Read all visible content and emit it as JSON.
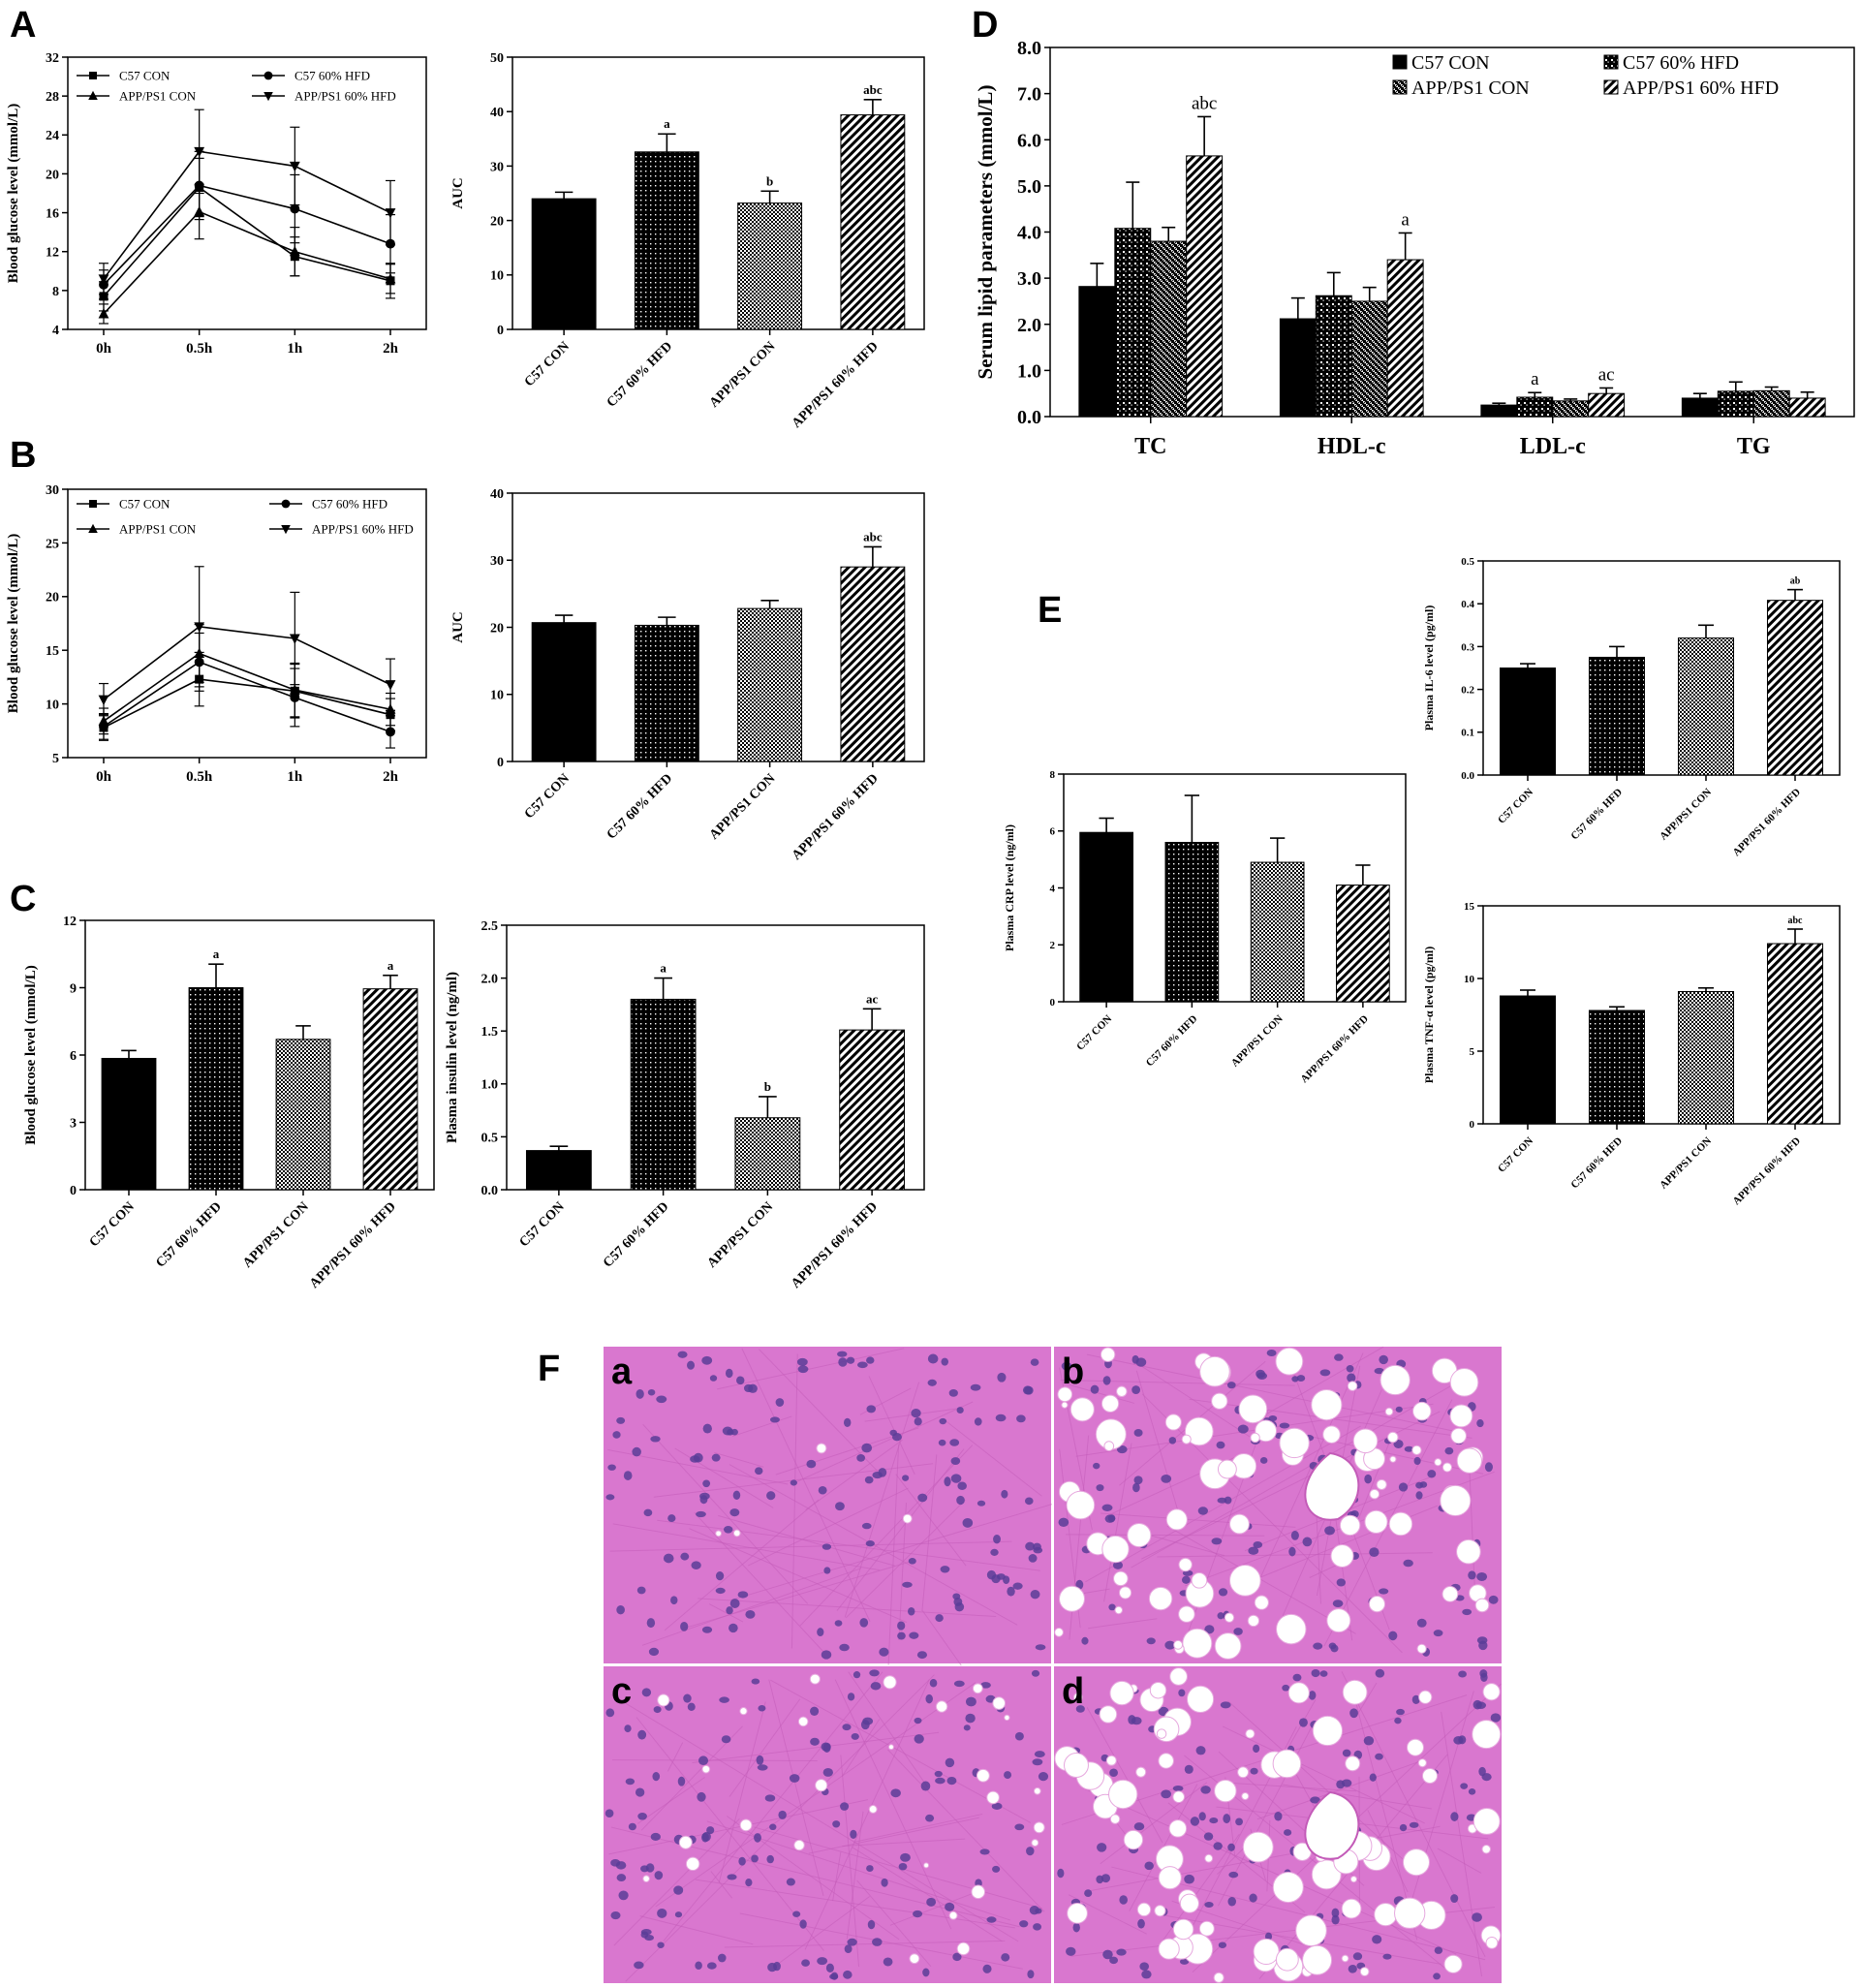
{
  "panels": [
    "A",
    "B",
    "C",
    "D",
    "E",
    "F"
  ],
  "colors": {
    "ink": "#000000",
    "background": "#ffffff",
    "tissue": "#d977cf",
    "nucleus": "#5a3d98"
  },
  "patterns": {
    "C57 CON": "solid-black",
    "C57 60% HFD": "dotted",
    "APP/PS1 CON": "checker",
    "APP/PS1 60% HFD": "diagonal-lines"
  },
  "chart_data": [
    {
      "id": "A1",
      "panel": "A",
      "type": "line",
      "xlabel": "",
      "ylabel": "Blood glucose level (mmol/L)",
      "ylim": [
        4,
        32
      ],
      "yticks": [
        4,
        8,
        12,
        16,
        20,
        24,
        28,
        32
      ],
      "categories": [
        "0h",
        "0.5h",
        "1h",
        "2h"
      ],
      "legend_position": "top-left",
      "series": [
        {
          "name": "C57 CON",
          "marker": "square",
          "values": [
            7.4,
            18.6,
            11.5,
            9.0
          ],
          "errors": [
            1.5,
            3.0,
            2.0,
            1.8
          ]
        },
        {
          "name": "C57 60% HFD",
          "marker": "circle",
          "values": [
            8.6,
            18.8,
            16.4,
            12.8
          ],
          "errors": [
            1.5,
            3.5,
            3.5,
            3.0
          ]
        },
        {
          "name": "APP/PS1 CON",
          "marker": "triangle-up",
          "values": [
            5.6,
            16.1,
            12.0,
            9.2
          ],
          "errors": [
            1.0,
            2.8,
            2.5,
            1.5
          ]
        },
        {
          "name": "APP/PS1 60% HFD",
          "marker": "triangle-down",
          "values": [
            9.2,
            22.3,
            20.8,
            16.0
          ],
          "errors": [
            1.6,
            4.3,
            4.0,
            3.3
          ]
        }
      ]
    },
    {
      "id": "A2",
      "panel": "A",
      "type": "bar",
      "xlabel": "",
      "ylabel": "AUC",
      "ylim": [
        0,
        50
      ],
      "yticks": [
        0,
        10,
        20,
        30,
        40,
        50
      ],
      "categories": [
        "C57 CON",
        "C57 60% HFD",
        "APP/PS1 CON",
        "APP/PS1 60% HFD"
      ],
      "values": [
        24.0,
        32.6,
        23.2,
        39.4
      ],
      "errors": [
        1.2,
        3.3,
        2.2,
        2.8
      ],
      "annotations": [
        "",
        "a",
        "b",
        "abc"
      ]
    },
    {
      "id": "B1",
      "panel": "B",
      "type": "line",
      "xlabel": "",
      "ylabel": "Blood glucose level (mmol/L)",
      "ylim": [
        5,
        30
      ],
      "yticks": [
        5,
        10,
        15,
        20,
        25,
        30
      ],
      "categories": [
        "0h",
        "0.5h",
        "1h",
        "2h"
      ],
      "legend_position": "top-left",
      "series": [
        {
          "name": "C57 CON",
          "marker": "square",
          "values": [
            7.8,
            12.3,
            11.2,
            9.0
          ],
          "errors": [
            1.2,
            2.5,
            2.5,
            1.5
          ]
        },
        {
          "name": "C57 60% HFD",
          "marker": "circle",
          "values": [
            7.9,
            13.9,
            10.6,
            7.4
          ],
          "errors": [
            1.2,
            2.7,
            2.7,
            1.5
          ]
        },
        {
          "name": "APP/PS1 CON",
          "marker": "triangle-up",
          "values": [
            8.4,
            14.7,
            11.3,
            9.5
          ],
          "errors": [
            1.2,
            2.7,
            2.5,
            1.5
          ]
        },
        {
          "name": "APP/PS1 60% HFD",
          "marker": "triangle-down",
          "values": [
            10.4,
            17.2,
            16.1,
            11.8
          ],
          "errors": [
            1.5,
            5.6,
            4.3,
            2.4
          ]
        }
      ]
    },
    {
      "id": "B2",
      "panel": "B",
      "type": "bar",
      "xlabel": "",
      "ylabel": "AUC",
      "ylim": [
        0,
        40
      ],
      "yticks": [
        0,
        10,
        20,
        30,
        40
      ],
      "categories": [
        "C57 CON",
        "C57 60% HFD",
        "APP/PS1 CON",
        "APP/PS1 60% HFD"
      ],
      "values": [
        20.7,
        20.3,
        22.8,
        29.0
      ],
      "errors": [
        1.1,
        1.2,
        1.2,
        3.0
      ],
      "annotations": [
        "",
        "",
        "",
        "abc"
      ]
    },
    {
      "id": "C1",
      "panel": "C",
      "type": "bar",
      "xlabel": "",
      "ylabel": "Blood glucose level (mmol/L)",
      "ylim": [
        0,
        12
      ],
      "yticks": [
        0,
        3,
        6,
        9,
        12
      ],
      "categories": [
        "C57 CON",
        "C57 60% HFD",
        "APP/PS1 CON",
        "APP/PS1 60% HFD"
      ],
      "values": [
        5.85,
        9.0,
        6.7,
        8.95
      ],
      "errors": [
        0.35,
        1.05,
        0.6,
        0.6
      ],
      "annotations": [
        "",
        "a",
        "",
        "a"
      ]
    },
    {
      "id": "C2",
      "panel": "C",
      "type": "bar",
      "xlabel": "",
      "ylabel": "Plasma insulin level (ng/ml)",
      "ylim": [
        0,
        2.5
      ],
      "yticks": [
        "0.0",
        "0.5",
        "1.0",
        "1.5",
        "2.0",
        "2.5"
      ],
      "categories": [
        "C57 CON",
        "C57 60% HFD",
        "APP/PS1 CON",
        "APP/PS1 60% HFD"
      ],
      "values": [
        0.37,
        1.8,
        0.68,
        1.51
      ],
      "errors": [
        0.04,
        0.2,
        0.2,
        0.2
      ],
      "annotations": [
        "",
        "a",
        "b",
        "ac"
      ]
    },
    {
      "id": "D",
      "panel": "D",
      "type": "bar",
      "xlabel": "",
      "ylabel": "Serum lipid parameters (mmol/L)",
      "ylim": [
        0,
        8
      ],
      "yticks": [
        "0.0",
        "1.0",
        "2.0",
        "3.0",
        "4.0",
        "5.0",
        "6.0",
        "7.0",
        "8.0"
      ],
      "categories": [
        "TC",
        "HDL-c",
        "LDL-c",
        "TG"
      ],
      "legend_position": "top-right",
      "series": [
        {
          "name": "C57 CON",
          "values": [
            2.82,
            2.12,
            0.25,
            0.4
          ],
          "errors": [
            0.5,
            0.45,
            0.04,
            0.1
          ]
        },
        {
          "name": "C57 60% HFD",
          "values": [
            4.08,
            2.62,
            0.42,
            0.55
          ],
          "errors": [
            1.0,
            0.5,
            0.1,
            0.2
          ]
        },
        {
          "name": "APP/PS1 CON",
          "values": [
            3.8,
            2.5,
            0.34,
            0.56
          ],
          "errors": [
            0.3,
            0.3,
            0.04,
            0.08
          ]
        },
        {
          "name": "APP/PS1 60% HFD",
          "values": [
            5.65,
            3.4,
            0.5,
            0.4
          ],
          "errors": [
            0.85,
            0.58,
            0.12,
            0.13
          ]
        }
      ],
      "annotations": [
        [
          "",
          "",
          "",
          "abc"
        ],
        [
          "",
          "",
          "",
          "a"
        ],
        [
          "",
          "a",
          "",
          "ac"
        ],
        [
          "",
          "",
          "",
          ""
        ]
      ]
    },
    {
      "id": "E-IL6",
      "panel": "E",
      "type": "bar",
      "xlabel": "",
      "ylabel": "Plasma IL-6 level (pg/ml)",
      "ylim": [
        0,
        0.5
      ],
      "yticks": [
        "0.0",
        "0.1",
        "0.2",
        "0.3",
        "0.4",
        "0.5"
      ],
      "categories": [
        "C57 CON",
        "C57 60% HFD",
        "APP/PS1 CON",
        "APP/PS1 60% HFD"
      ],
      "values": [
        0.25,
        0.275,
        0.32,
        0.408
      ],
      "errors": [
        0.01,
        0.025,
        0.03,
        0.025
      ],
      "annotations": [
        "",
        "",
        "",
        "ab"
      ]
    },
    {
      "id": "E-CRP",
      "panel": "E",
      "type": "bar",
      "xlabel": "",
      "ylabel": "Plasma CRP level (ng/ml)",
      "ylim": [
        0,
        8
      ],
      "yticks": [
        0,
        2,
        4,
        6,
        8
      ],
      "categories": [
        "C57 CON",
        "C57 60% HFD",
        "APP/PS1 CON",
        "APP/PS1 60% HFD"
      ],
      "values": [
        5.95,
        5.6,
        4.9,
        4.1
      ],
      "errors": [
        0.5,
        1.65,
        0.85,
        0.7
      ],
      "annotations": [
        "",
        "",
        "",
        ""
      ]
    },
    {
      "id": "E-TNF",
      "panel": "E",
      "type": "bar",
      "xlabel": "",
      "ylabel": "Plasma TNF-α level (pg/ml)",
      "ylim": [
        0,
        15
      ],
      "yticks": [
        0,
        5,
        10,
        15
      ],
      "categories": [
        "C57 CON",
        "C57 60% HFD",
        "APP/PS1 CON",
        "APP/PS1 60% HFD"
      ],
      "values": [
        8.8,
        7.8,
        9.1,
        12.4
      ],
      "errors": [
        0.4,
        0.25,
        0.25,
        1.0
      ],
      "annotations": [
        "",
        "",
        "",
        "abc"
      ]
    }
  ],
  "histology": {
    "panel": "F",
    "tiles": [
      {
        "label": "a",
        "vacuoles": "none"
      },
      {
        "label": "b",
        "vacuoles": "many"
      },
      {
        "label": "c",
        "vacuoles": "few"
      },
      {
        "label": "d",
        "vacuoles": "many"
      }
    ]
  }
}
